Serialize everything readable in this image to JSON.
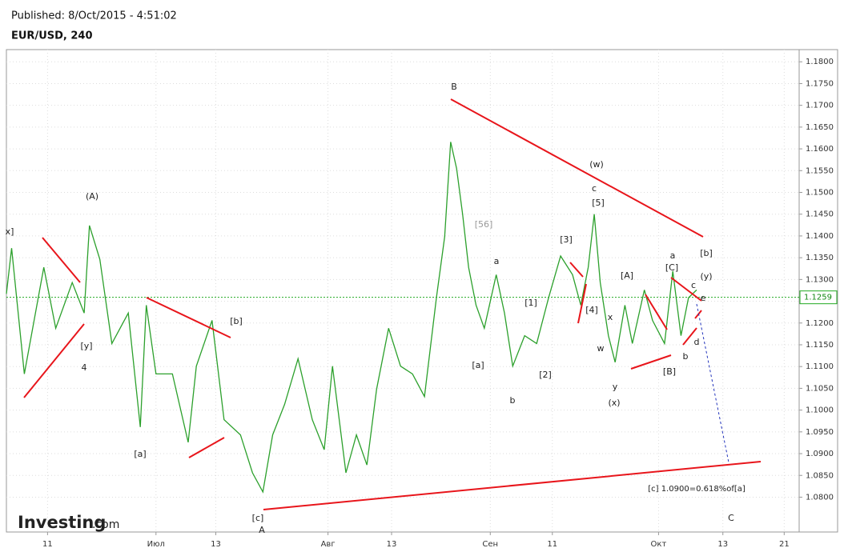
{
  "chart_data": {
    "type": "line",
    "published": "Published: 8/Oct/2015 - 4:51:02",
    "title": "EUR/USD, 240",
    "logo": {
      "brand": "Investing",
      "suffix": ".com"
    },
    "x": [
      0,
      0.7,
      2.4,
      5.0,
      6.6,
      8.8,
      10.4,
      11.1,
      12.5,
      14.1,
      16.3,
      17.9,
      18.7,
      20.0,
      22.2,
      24.3,
      25.4,
      27.5,
      29.1,
      31.3,
      32.9,
      34.3,
      35.6,
      37.2,
      39.0,
      40.9,
      42.5,
      43.6,
      45.4,
      46.8,
      48.2,
      49.5,
      51.1,
      52.7,
      54.3,
      55.9,
      57.5,
      58.6,
      59.4,
      60.2,
      61.0,
      61.8,
      62.8,
      63.9,
      65.5,
      66.6,
      67.7,
      69.3,
      70.9,
      72.5,
      74.1,
      75.7,
      76.8,
      77.8,
      78.6,
      79.4,
      80.5,
      81.4,
      82.7,
      83.7,
      85.3,
      86.4,
      88.0,
      89.1,
      90.2,
      91.2,
      92.3
    ],
    "values": [
      1.1267,
      1.1372,
      1.1083,
      1.1328,
      1.1188,
      1.1293,
      1.1223,
      1.1424,
      1.1346,
      1.1153,
      1.1223,
      1.0961,
      1.1241,
      1.1083,
      1.1083,
      1.0926,
      1.1101,
      1.1206,
      1.0978,
      1.0943,
      1.0856,
      1.0812,
      1.0943,
      1.1013,
      1.1118,
      1.0978,
      1.0909,
      1.1101,
      1.0856,
      1.0943,
      1.0874,
      1.1048,
      1.1188,
      1.1101,
      1.1083,
      1.1031,
      1.1258,
      1.1398,
      1.1616,
      1.1555,
      1.145,
      1.1328,
      1.1241,
      1.1188,
      1.1311,
      1.1223,
      1.1101,
      1.1171,
      1.1153,
      1.1258,
      1.1354,
      1.1311,
      1.1241,
      1.1328,
      1.145,
      1.1293,
      1.1171,
      1.111,
      1.1241,
      1.1153,
      1.1276,
      1.1206,
      1.1153,
      1.1319,
      1.1171,
      1.1258,
      1.1276
    ],
    "color": "#2ca02c",
    "last_price": 1.1259,
    "xlim": [
      0,
      106
    ],
    "xticks": [
      {
        "value": 5.5,
        "label": "11"
      },
      {
        "value": 20,
        "label": "Июл"
      },
      {
        "value": 28,
        "label": "13"
      },
      {
        "value": 43,
        "label": "Авг"
      },
      {
        "value": 51.5,
        "label": "13"
      },
      {
        "value": 64.7,
        "label": "Сен"
      },
      {
        "value": 73,
        "label": "11"
      },
      {
        "value": 87.2,
        "label": "Окт"
      },
      {
        "value": 95.8,
        "label": "13"
      },
      {
        "value": 104,
        "label": "21"
      }
    ],
    "ylim": [
      1.072,
      1.1828
    ],
    "yticks": [
      {
        "value": 1.08,
        "label": "1.0800"
      },
      {
        "value": 1.085,
        "label": "1.0850"
      },
      {
        "value": 1.09,
        "label": "1.0900"
      },
      {
        "value": 1.095,
        "label": "1.0950"
      },
      {
        "value": 1.1,
        "label": "1.1000"
      },
      {
        "value": 1.105,
        "label": "1.1050"
      },
      {
        "value": 1.11,
        "label": "1.1100"
      },
      {
        "value": 1.115,
        "label": "1.1150"
      },
      {
        "value": 1.12,
        "label": "1.1200"
      },
      {
        "value": 1.125,
        "label": "1.1250"
      },
      {
        "value": 1.13,
        "label": "1.1300"
      },
      {
        "value": 1.135,
        "label": "1.1350"
      },
      {
        "value": 1.14,
        "label": "1.1400"
      },
      {
        "value": 1.145,
        "label": "1.1450"
      },
      {
        "value": 1.15,
        "label": "1.1500"
      },
      {
        "value": 1.155,
        "label": "1.1550"
      },
      {
        "value": 1.16,
        "label": "1.1600"
      },
      {
        "value": 1.165,
        "label": "1.1650"
      },
      {
        "value": 1.17,
        "label": "1.1700"
      },
      {
        "value": 1.175,
        "label": "1.1750"
      },
      {
        "value": 1.18,
        "label": "1.1800"
      }
    ],
    "grid": true,
    "annotations": [
      "x]",
      "(A)",
      "[y]",
      "4",
      "[a]",
      "[b]",
      "[c]",
      "A",
      "B",
      "[56]",
      "a",
      "[a]",
      "b",
      "[1]",
      "[2]",
      "[3]",
      "[4]",
      "[5]",
      "c",
      "(w)",
      "x",
      "w",
      "y",
      "(x)",
      "[A]",
      "[B]",
      "[C]",
      "a",
      "b",
      "c",
      "d",
      "e",
      "(y)",
      "[b]",
      "[c] 1.0900=0.618%of[a]",
      "C"
    ]
  }
}
